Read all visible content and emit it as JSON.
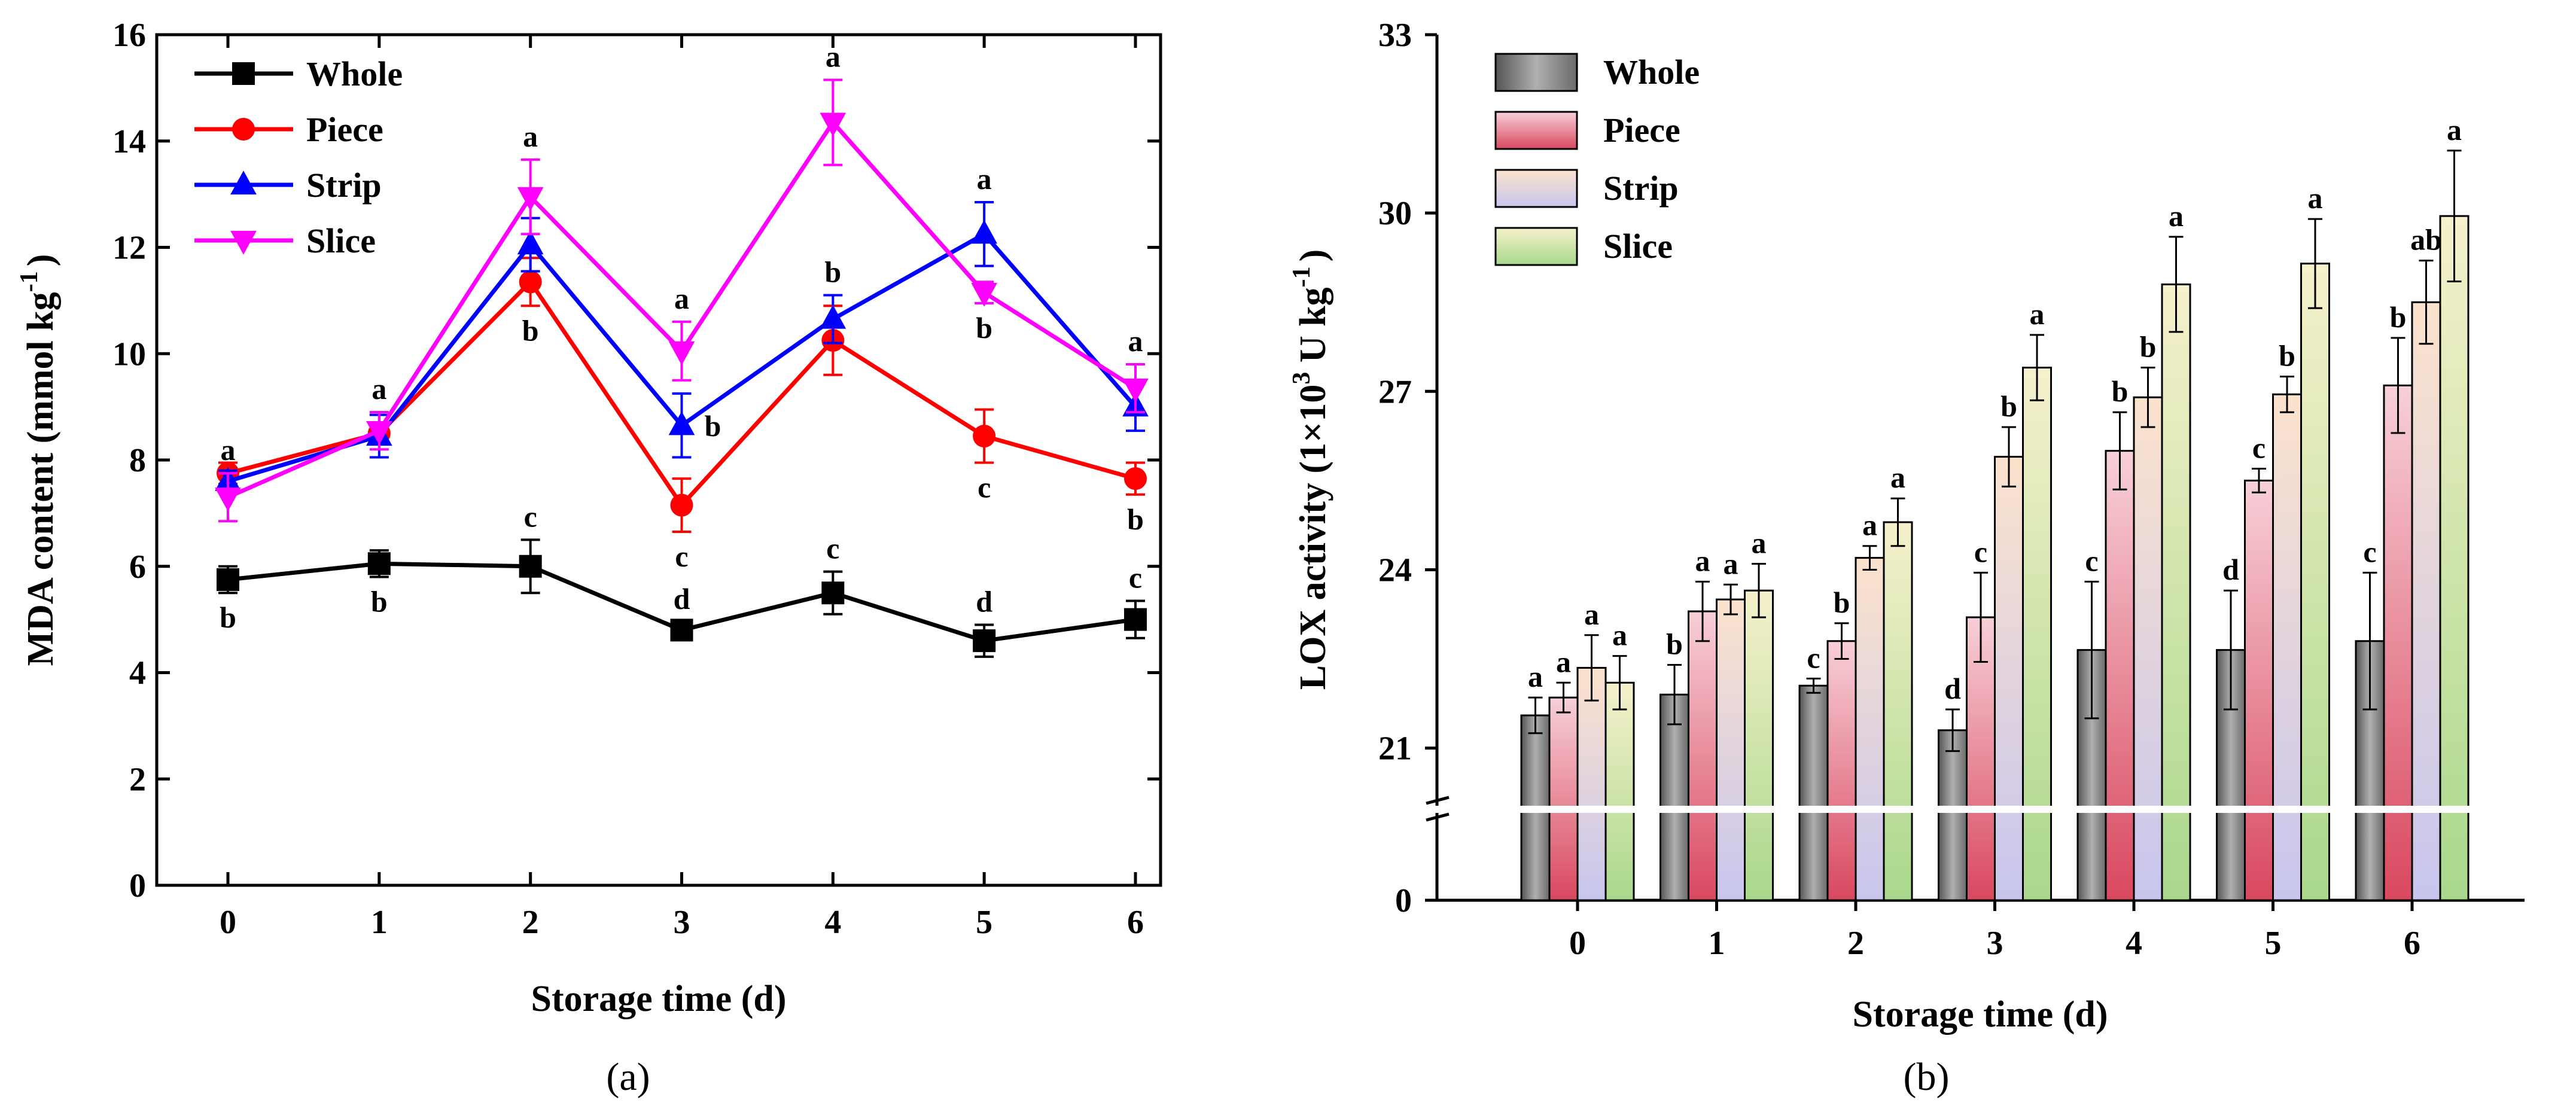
{
  "chart_data": [
    {
      "type": "line",
      "caption": "(a)",
      "xlabel": "Storage time (d)",
      "ylabel_main": "MDA content (mmol kg",
      "ylabel_sup": "-1",
      "ylabel_end": ")",
      "x": [
        0,
        1,
        2,
        3,
        4,
        5,
        6
      ],
      "x_ticks": [
        "0",
        "1",
        "2",
        "3",
        "4",
        "5",
        "6"
      ],
      "ylim": [
        0,
        16
      ],
      "y_ticks": [
        "0",
        "2",
        "4",
        "6",
        "8",
        "10",
        "12",
        "14",
        "16"
      ],
      "grid": false,
      "legend_position": "top-left",
      "series": [
        {
          "name": "Whole",
          "color": "#000000",
          "marker": "square",
          "values": [
            5.75,
            6.05,
            6.0,
            4.8,
            5.5,
            4.6,
            5.0
          ],
          "errors": [
            0.25,
            0.25,
            0.5,
            0.15,
            0.4,
            0.3,
            0.35
          ],
          "letters": [
            "b",
            "b",
            "c",
            "d",
            "c",
            "d",
            "c"
          ],
          "letter_pos": [
            "below",
            "below",
            "above",
            "above",
            "above",
            "above",
            "above"
          ]
        },
        {
          "name": "Piece",
          "color": "#ff0000",
          "marker": "circle",
          "values": [
            7.75,
            8.5,
            11.35,
            7.15,
            10.25,
            8.45,
            7.65
          ],
          "errors": [
            0.2,
            0.2,
            0.45,
            0.5,
            0.65,
            0.5,
            0.3
          ],
          "letters": [
            "",
            "",
            "b",
            "c",
            "",
            "c",
            "b"
          ],
          "letter_pos": [
            "",
            "",
            "below",
            "below",
            "",
            "below",
            "below"
          ]
        },
        {
          "name": "Strip",
          "color": "#0000ff",
          "marker": "triangle-up",
          "values": [
            7.6,
            8.45,
            12.05,
            8.65,
            10.65,
            12.25,
            9.0
          ],
          "errors": [
            0.2,
            0.4,
            0.5,
            0.6,
            0.45,
            0.6,
            0.45
          ],
          "letters": [
            "",
            "",
            "",
            "b",
            "b",
            "a",
            ""
          ],
          "letter_pos": [
            "",
            "",
            "",
            "right",
            "above",
            "above",
            ""
          ]
        },
        {
          "name": "Slice",
          "color": "#ff00ff",
          "marker": "triangle-down",
          "values": [
            7.3,
            8.55,
            12.95,
            10.05,
            14.35,
            11.15,
            9.35
          ],
          "errors": [
            0.45,
            0.35,
            0.7,
            0.55,
            0.8,
            0.2,
            0.45
          ],
          "letters": [
            "a",
            "a",
            "a",
            "a",
            "a",
            "b",
            "a"
          ],
          "letter_pos": [
            "above",
            "above",
            "above",
            "above",
            "above",
            "below",
            "above"
          ]
        }
      ]
    },
    {
      "type": "bar",
      "caption": "(b)",
      "xlabel": "Storage time (d)",
      "ylabel_main": "LOX activity (1×10",
      "ylabel_sup1": "3",
      "ylabel_mid": " U kg",
      "ylabel_sup2": "-1",
      "ylabel_end": ")",
      "categories": [
        "0",
        "1",
        "2",
        "3",
        "4",
        "5",
        "6"
      ],
      "ylim": [
        20,
        33
      ],
      "y_ticks": [
        "0",
        "21",
        "24",
        "27",
        "30",
        "33"
      ],
      "axis_break": true,
      "grid": false,
      "legend_position": "top-left",
      "series": [
        {
          "name": "Whole",
          "color": "#8a8a8a",
          "values": [
            21.55,
            21.9,
            22.05,
            21.3,
            22.65,
            22.65,
            22.8
          ],
          "errors": [
            0.3,
            0.5,
            0.12,
            0.35,
            1.15,
            1.0,
            1.15
          ],
          "letters": [
            "a",
            "b",
            "c",
            "d",
            "c",
            "d",
            "c"
          ]
        },
        {
          "name": "Piece",
          "color": "#e06c7e",
          "values": [
            21.85,
            23.3,
            22.8,
            23.2,
            26.0,
            25.5,
            27.1
          ],
          "errors": [
            0.25,
            0.5,
            0.3,
            0.75,
            0.65,
            0.2,
            0.8
          ],
          "letters": [
            "a",
            "a",
            "b",
            "c",
            "b",
            "c",
            "b"
          ]
        },
        {
          "name": "Strip",
          "color": "#f2c7b0",
          "values": [
            22.35,
            23.5,
            24.2,
            25.9,
            26.9,
            26.95,
            28.5
          ],
          "errors": [
            0.55,
            0.25,
            0.2,
            0.5,
            0.5,
            0.3,
            0.7
          ],
          "letters": [
            "a",
            "a",
            "a",
            "b",
            "b",
            "b",
            "ab"
          ]
        },
        {
          "name": "Slice",
          "color": "#cde4a0",
          "values": [
            22.1,
            23.65,
            24.8,
            27.4,
            28.8,
            29.15,
            29.95
          ],
          "errors": [
            0.45,
            0.45,
            0.4,
            0.55,
            0.8,
            0.75,
            1.1
          ],
          "letters": [
            "a",
            "a",
            "a",
            "a",
            "a",
            "a",
            "a"
          ]
        }
      ]
    }
  ]
}
